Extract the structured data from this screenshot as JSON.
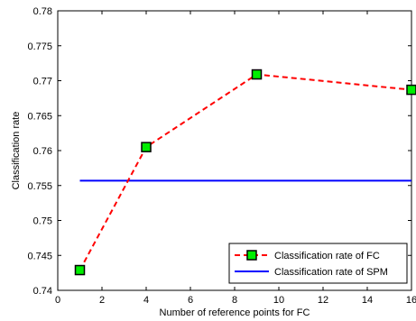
{
  "chart_data": {
    "type": "line",
    "xlabel": "Number of reference points for FC",
    "ylabel": "Classification rate",
    "xlim": [
      0,
      16
    ],
    "ylim": [
      0.74,
      0.78
    ],
    "xticks": [
      0,
      2,
      4,
      6,
      8,
      10,
      12,
      14,
      16
    ],
    "yticks": [
      0.74,
      0.745,
      0.75,
      0.755,
      0.76,
      0.765,
      0.77,
      0.775,
      0.78
    ],
    "xtick_labels": [
      "0",
      "2",
      "4",
      "6",
      "8",
      "10",
      "12",
      "14",
      "16"
    ],
    "ytick_labels": [
      "0.74",
      "0.745",
      "0.75",
      "0.755",
      "0.76",
      "0.765",
      "0.77",
      "0.775",
      "0.78"
    ],
    "grid": false,
    "legend_position": "bottom-right",
    "series": [
      {
        "name": "Classification rate of FC",
        "style": "dashed-with-square-markers",
        "color": "#ff0000",
        "marker_color": "#00ee00",
        "x": [
          1,
          4,
          9,
          16
        ],
        "y": [
          0.7429,
          0.7605,
          0.7709,
          0.7687
        ]
      },
      {
        "name": "Classification rate of SPM",
        "style": "solid",
        "color": "#0000ff",
        "x": [
          1,
          16
        ],
        "y": [
          0.7557,
          0.7557
        ]
      }
    ]
  }
}
